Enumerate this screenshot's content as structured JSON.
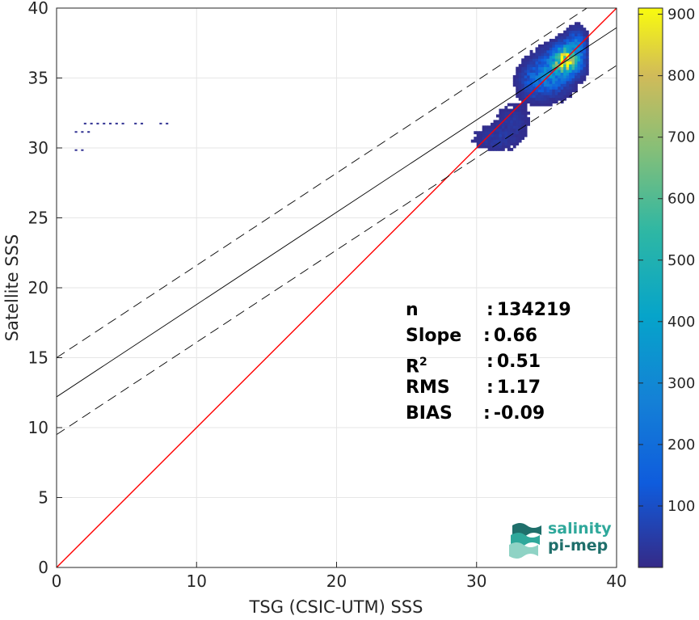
{
  "chart_data": {
    "type": "scatter",
    "subtype": "density-histogram",
    "xlabel": "TSG (CSIC-UTM) SSS",
    "ylabel": "Satellite SSS",
    "xlim": [
      0,
      40
    ],
    "ylim": [
      0,
      40
    ],
    "x_ticks": [
      0,
      10,
      20,
      30,
      40
    ],
    "y_ticks": [
      0,
      5,
      10,
      15,
      20,
      25,
      30,
      35,
      40
    ],
    "grid": true,
    "lines": [
      {
        "kind": "identity",
        "color": "#ff0000",
        "slope": 1,
        "intercept": 0
      },
      {
        "kind": "regression",
        "color": "#000000",
        "slope": 0.66,
        "intercept": 12.2
      },
      {
        "kind": "regression-upper",
        "color": "#000000",
        "style": "dashed",
        "slope": 0.66,
        "intercept": 15.0
      },
      {
        "kind": "regression-lower",
        "color": "#000000",
        "style": "dashed",
        "slope": 0.66,
        "intercept": 9.5
      }
    ],
    "colorbar": {
      "min": 0,
      "max": 910,
      "ticks": [
        100,
        200,
        300,
        400,
        500,
        600,
        700,
        800,
        900
      ],
      "colormap": "parula"
    },
    "stats": [
      {
        "key": "n",
        "value": "134219"
      },
      {
        "key": "Slope",
        "value": "0.66"
      },
      {
        "key": "R",
        "sup": "2",
        "value": "0.51"
      },
      {
        "key": "RMS",
        "value": "1.17"
      },
      {
        "key": "BIAS",
        "value": "-0.09"
      }
    ],
    "clusters": [
      {
        "x": 36.3,
        "y": 36.2,
        "sx": 0.6,
        "sy": 0.6,
        "w": 900
      },
      {
        "x": 35.2,
        "y": 35.2,
        "sx": 0.8,
        "sy": 0.8,
        "w": 260
      },
      {
        "x": 34.0,
        "y": 34.6,
        "sx": 0.6,
        "sy": 0.7,
        "w": 120
      },
      {
        "x": 37.0,
        "y": 37.3,
        "sx": 0.4,
        "sy": 0.6,
        "w": 200
      },
      {
        "x": 31.3,
        "y": 30.6,
        "sx": 0.9,
        "sy": 0.5,
        "w": 45
      },
      {
        "x": 32.5,
        "y": 31.8,
        "sx": 0.7,
        "sy": 0.7,
        "w": 35
      }
    ],
    "outlier_rows": [
      {
        "y": 31.8,
        "x_from": 1.5,
        "x_to": 8.0
      },
      {
        "y": 31.2,
        "x_from": 1.3,
        "x_to": 2.3
      },
      {
        "y": 29.9,
        "x_from": 1.3,
        "x_to": 1.9
      }
    ]
  },
  "logo": {
    "line1": "salinity",
    "line2": "pi-mep"
  }
}
